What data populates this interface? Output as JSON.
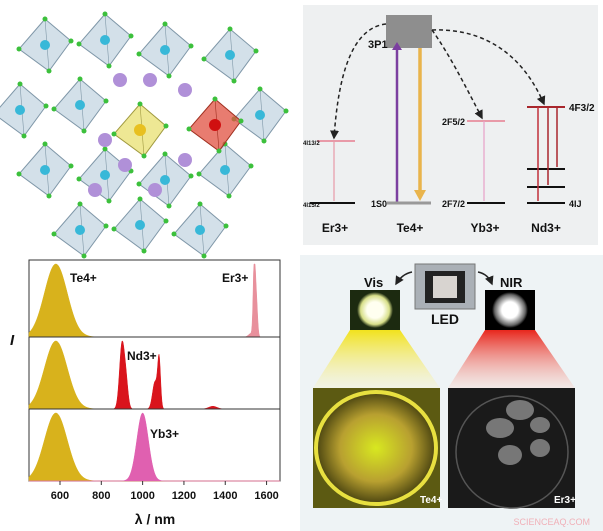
{
  "energy_diagram": {
    "excited_label": "3P1",
    "te_ground": "1S0",
    "er_upper": "4I13/2",
    "er_ground": "4I15/2",
    "yb_upper": "2F5/2",
    "yb_ground": "2F7/2",
    "nd_upper": "4F3/2",
    "nd_ground": "4IJ",
    "ions": [
      "Er3+",
      "Te4+",
      "Yb3+",
      "Nd3+"
    ],
    "colors": {
      "purple": "#7b3fa0",
      "yellow": "#e9b44c",
      "pink": "#e89aa8",
      "dark_red": "#a8262c"
    }
  },
  "chart_data": {
    "type": "area",
    "ylabel": "I",
    "xlabel": "λ / nm",
    "xlim": [
      450,
      1665
    ],
    "xticks": [
      600,
      800,
      1000,
      1200,
      1400,
      1600
    ],
    "grid": false,
    "panels": [
      {
        "labels": [
          "Te4+",
          "Er3+"
        ],
        "series": [
          {
            "name": "Te4+",
            "color": "#d8b21c",
            "peaks": [
              {
                "center": 580,
                "sigma": 55,
                "height": 1.0
              }
            ]
          },
          {
            "name": "Er3+",
            "color": "#e8909c",
            "peaks": [
              {
                "center": 1540,
                "sigma": 5,
                "height": 1.0
              },
              {
                "center": 1550,
                "sigma": 6,
                "height": 0.55
              },
              {
                "center": 1525,
                "sigma": 12,
                "height": 0.05
              }
            ]
          }
        ]
      },
      {
        "labels": [
          "Nd3+"
        ],
        "series": [
          {
            "name": "Te4+",
            "color": "#d8b21c",
            "peaks": [
              {
                "center": 580,
                "sigma": 55,
                "height": 1.0
              }
            ]
          },
          {
            "name": "Nd3+",
            "color": "#d9141c",
            "peaks": [
              {
                "center": 900,
                "sigma": 12,
                "height": 0.95
              },
              {
                "center": 920,
                "sigma": 10,
                "height": 0.35
              },
              {
                "center": 1060,
                "sigma": 12,
                "height": 0.4
              },
              {
                "center": 1080,
                "sigma": 7,
                "height": 0.7
              },
              {
                "center": 1340,
                "sigma": 20,
                "height": 0.04
              }
            ]
          }
        ]
      },
      {
        "labels": [
          "Yb3+"
        ],
        "series": [
          {
            "name": "Te4+",
            "color": "#d8b21c",
            "peaks": [
              {
                "center": 580,
                "sigma": 55,
                "height": 1.0
              }
            ]
          },
          {
            "name": "Yb3+",
            "color": "#e060b0",
            "peaks": [
              {
                "center": 1000,
                "sigma": 28,
                "height": 1.0
              }
            ]
          }
        ]
      }
    ]
  },
  "led_panel": {
    "vis_label": "Vis",
    "nir_label": "NIR",
    "led_label": "LED",
    "left_photo_label": "Te4+",
    "right_photo_label": "Er3+"
  },
  "watermark": "SCIENCEAQ.COM"
}
